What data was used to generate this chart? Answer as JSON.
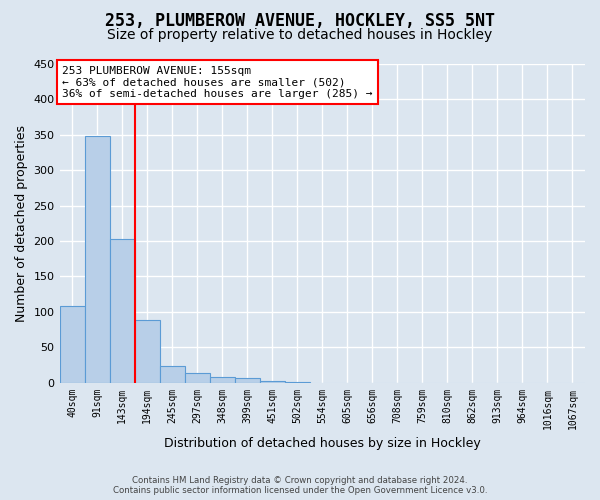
{
  "title": "253, PLUMBEROW AVENUE, HOCKLEY, SS5 5NT",
  "subtitle": "Size of property relative to detached houses in Hockley",
  "xlabel": "Distribution of detached houses by size in Hockley",
  "ylabel": "Number of detached properties",
  "footer_line1": "Contains HM Land Registry data © Crown copyright and database right 2024.",
  "footer_line2": "Contains public sector information licensed under the Open Government Licence v3.0.",
  "bin_labels": [
    "40sqm",
    "91sqm",
    "143sqm",
    "194sqm",
    "245sqm",
    "297sqm",
    "348sqm",
    "399sqm",
    "451sqm",
    "502sqm",
    "554sqm",
    "605sqm",
    "656sqm",
    "708sqm",
    "759sqm",
    "810sqm",
    "862sqm",
    "913sqm",
    "964sqm",
    "1016sqm",
    "1067sqm"
  ],
  "values": [
    108,
    349,
    203,
    89,
    23,
    14,
    8,
    7,
    3,
    1,
    0,
    0,
    0,
    0,
    0,
    0,
    0,
    0,
    0,
    0,
    0
  ],
  "bar_color": "#b8cfe8",
  "bar_edge_color": "#5b9bd5",
  "vline_x_index": 2,
  "vline_color": "red",
  "annotation_line1": "253 PLUMBEROW AVENUE: 155sqm",
  "annotation_line2": "← 63% of detached houses are smaller (502)",
  "annotation_line3": "36% of semi-detached houses are larger (285) →",
  "annotation_box_color": "white",
  "annotation_box_edge_color": "red",
  "ylim": [
    0,
    450
  ],
  "yticks": [
    0,
    50,
    100,
    150,
    200,
    250,
    300,
    350,
    400,
    450
  ],
  "background_color": "#dce6f0",
  "plot_bg_color": "#dce6f0",
  "grid_color": "white",
  "title_fontsize": 12,
  "subtitle_fontsize": 10,
  "ylabel_fontsize": 9,
  "xlabel_fontsize": 9
}
